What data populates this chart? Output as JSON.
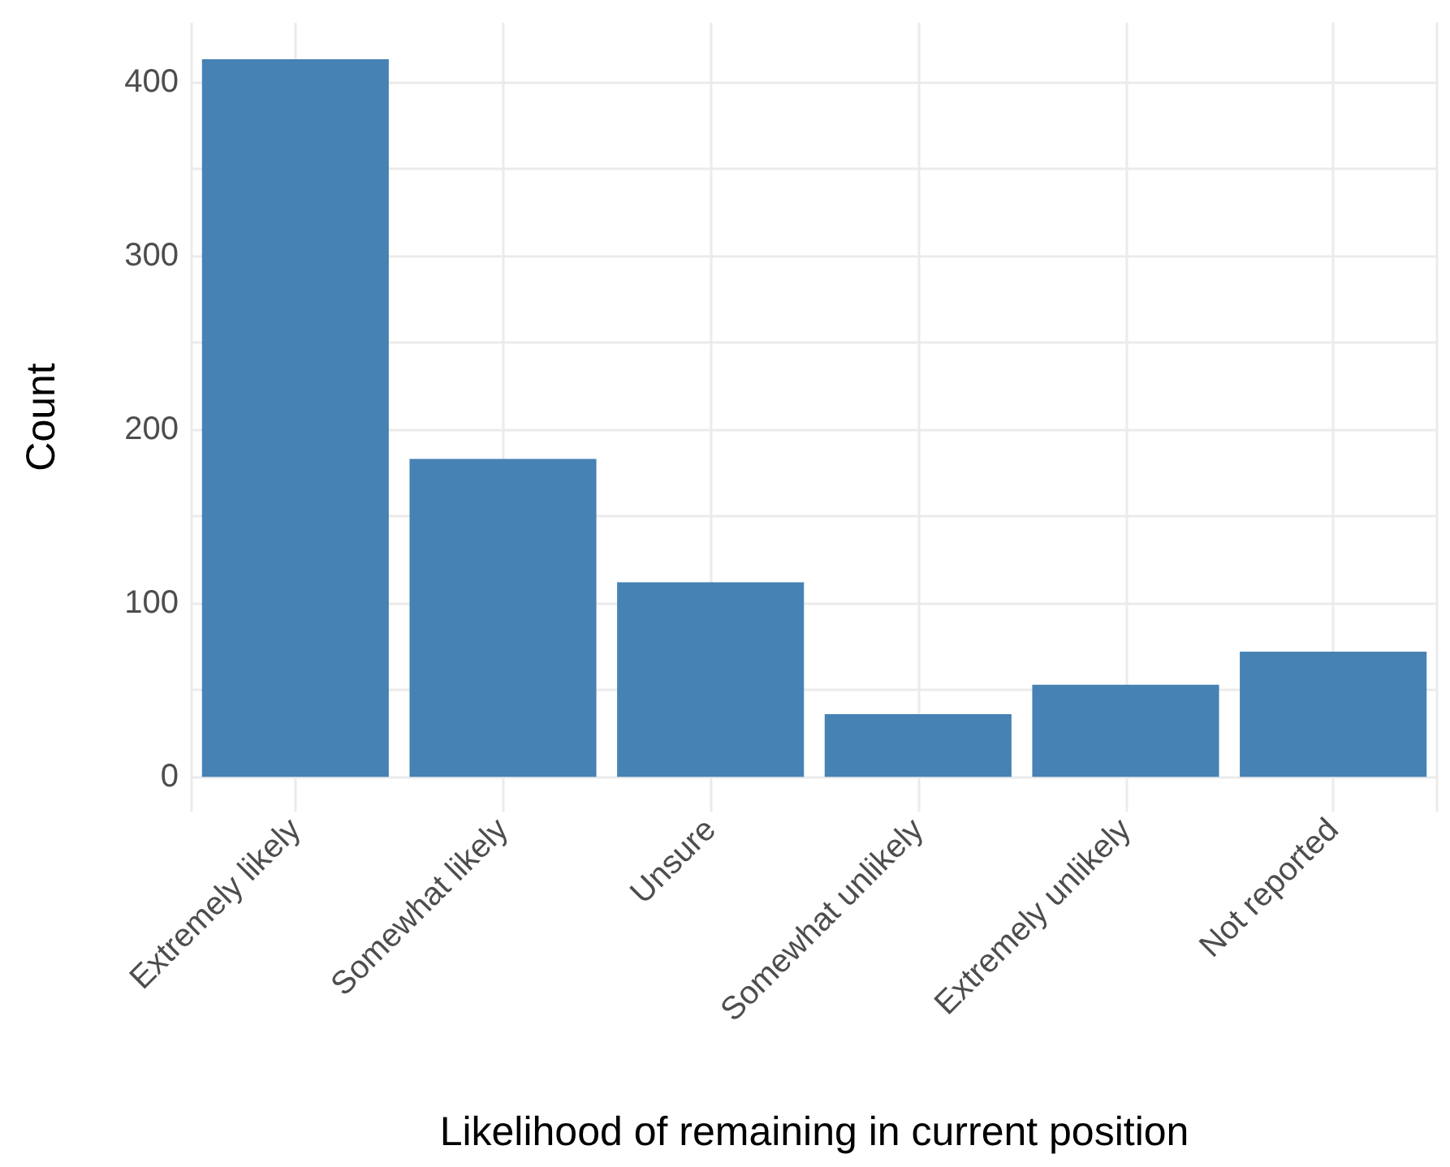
{
  "chart_data": {
    "type": "bar",
    "xlabel": "Likelihood of remaining in current position",
    "ylabel": "Count",
    "categories": [
      "Extremely likely",
      "Somewhat likely",
      "Unsure",
      "Somewhat unlikely",
      "Extremely unlikely",
      "Not reported"
    ],
    "values": [
      413,
      183,
      112,
      36,
      53,
      72
    ],
    "color": "#4682b4",
    "ylim": [
      -20,
      434
    ],
    "yticks": [
      0,
      {
        "value": 50,
        "label": null
      },
      100,
      {
        "value": 150,
        "label": null
      },
      200,
      {
        "value": 250,
        "label": null
      },
      300,
      {
        "value": 350,
        "label": null
      },
      400
    ],
    "grid": true
  }
}
